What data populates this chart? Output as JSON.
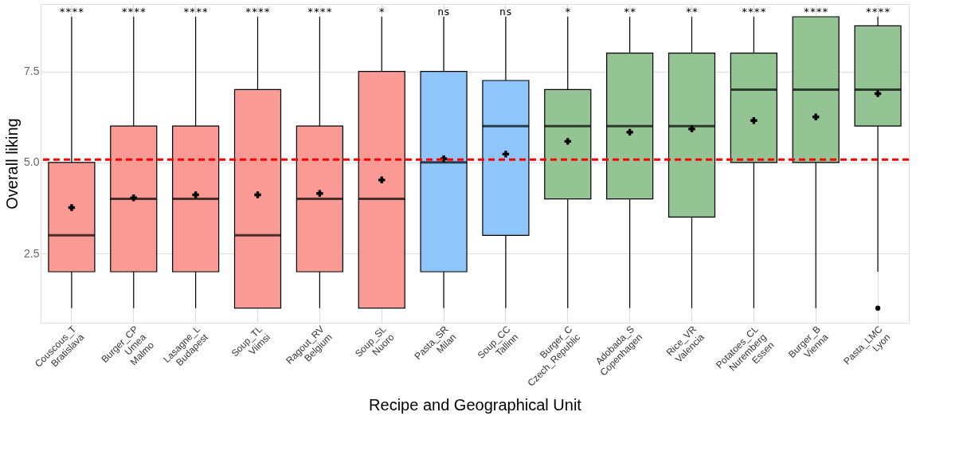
{
  "chart_data": {
    "type": "box",
    "xlabel": "Recipe and Geographical Unit",
    "ylabel": "Overall liking",
    "categories": [
      "Couscous_T\nBratislava",
      "Burger_CP\nUmea\nMalmo",
      "Lasagne_L\nBudapest",
      "Soup_TL\nViimsi",
      "Ragout_RV\nBelgium",
      "Soup_SL\nNuoro",
      "Pasta_SR\nMilan",
      "Soup_CC\nTallinn",
      "Burger_C\nCzech_Republic",
      "Adobada_S\nCopenhagen",
      "Rice_VR\nValencia",
      "Potatoes_CL\nNuremberg\nEssen",
      "Burger_B\nVienna",
      "Pasta_LMC\nLyon"
    ],
    "colors": [
      "#f99a94",
      "#f99a94",
      "#f99a94",
      "#f99a94",
      "#f99a94",
      "#f99a94",
      "#8ec5fa",
      "#8ec5fa",
      "#94c494",
      "#94c494",
      "#94c494",
      "#94c494",
      "#94c494",
      "#94c494"
    ],
    "boxes": [
      {
        "low": 1,
        "q1": 2,
        "median": 3,
        "q3": 5,
        "high": 9,
        "mean": 3.76
      },
      {
        "low": 1,
        "q1": 2,
        "median": 4,
        "q3": 6,
        "high": 9,
        "mean": 4.03
      },
      {
        "low": 1,
        "q1": 2,
        "median": 4,
        "q3": 6,
        "high": 9,
        "mean": 4.11
      },
      {
        "low": 1,
        "q1": 1,
        "median": 3,
        "q3": 7,
        "high": 9,
        "mean": 4.11
      },
      {
        "low": 1,
        "q1": 2,
        "median": 4,
        "q3": 6,
        "high": 9,
        "mean": 4.15
      },
      {
        "low": 1,
        "q1": 1,
        "median": 4,
        "q3": 7.5,
        "high": 9,
        "mean": 4.52
      },
      {
        "low": 1,
        "q1": 2,
        "median": 5,
        "q3": 7.5,
        "high": 9,
        "mean": 5.1
      },
      {
        "low": 1,
        "q1": 3,
        "median": 6,
        "q3": 7.25,
        "high": 9,
        "mean": 5.23
      },
      {
        "low": 1,
        "q1": 4,
        "median": 6,
        "q3": 7,
        "high": 9,
        "mean": 5.58
      },
      {
        "low": 1,
        "q1": 4,
        "median": 6,
        "q3": 8,
        "high": 9,
        "mean": 5.83
      },
      {
        "low": 1,
        "q1": 3.5,
        "median": 6,
        "q3": 8,
        "high": 9,
        "mean": 5.92
      },
      {
        "low": 1,
        "q1": 5,
        "median": 7,
        "q3": 8,
        "high": 9,
        "mean": 6.15
      },
      {
        "low": 1,
        "q1": 5,
        "median": 7,
        "q3": 9,
        "high": 9,
        "mean": 6.25
      },
      {
        "low": 2,
        "q1": 6,
        "median": 7,
        "q3": 8.75,
        "high": 9,
        "mean": 6.89,
        "outliers": [
          1
        ]
      }
    ],
    "ylim": [
      0.6,
      9.35
    ],
    "yticks": [
      {
        "value": 2.5,
        "label": "2.5"
      },
      {
        "value": 5,
        "label": "5.0"
      },
      {
        "value": 7.5,
        "label": "7.5"
      }
    ],
    "ref_lines": [
      {
        "axis": "y",
        "value": 5.08,
        "color": "#ff0000",
        "line_style": "dashed"
      }
    ],
    "annotations": [
      "****",
      "****",
      "****",
      "****",
      "****",
      "*",
      "ns",
      "ns",
      "*",
      "**",
      "**",
      "****",
      "****",
      "****"
    ],
    "grid": true,
    "marker": "cross"
  }
}
